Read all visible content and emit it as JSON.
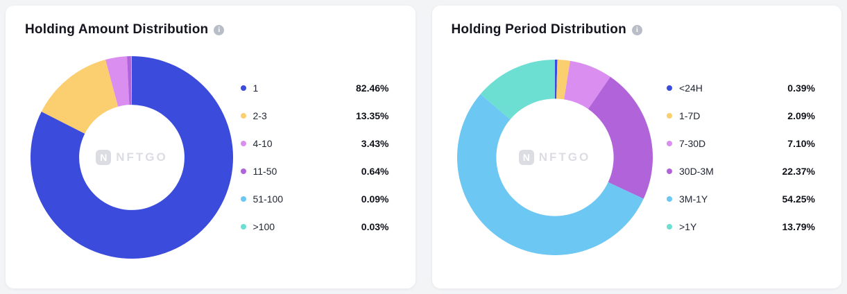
{
  "page": {
    "background_color": "#f3f4f6",
    "watermark_text": "NFTGO",
    "watermark_icon": "N"
  },
  "chart_data": [
    {
      "type": "pie",
      "donut": true,
      "title": "Holding Amount Distribution",
      "legend_position": "right",
      "labels": [
        "1",
        "2-3",
        "4-10",
        "11-50",
        "51-100",
        ">100"
      ],
      "values": [
        82.46,
        13.35,
        3.43,
        0.64,
        0.09,
        0.03
      ],
      "percent_labels": [
        "82.46%",
        "13.35%",
        "3.43%",
        "0.64%",
        "0.09%",
        "0.03%"
      ],
      "colors": [
        "#3b4bdb",
        "#fbce70",
        "#d98ef0",
        "#b163da",
        "#6cc7f2",
        "#6cdfd2"
      ]
    },
    {
      "type": "pie",
      "donut": true,
      "title": "Holding Period Distribution",
      "legend_position": "right",
      "labels": [
        "<24H",
        "1-7D",
        "7-30D",
        "30D-3M",
        "3M-1Y",
        ">1Y"
      ],
      "values": [
        0.39,
        2.09,
        7.1,
        22.37,
        54.25,
        13.79
      ],
      "percent_labels": [
        "0.39%",
        "2.09%",
        "7.10%",
        "22.37%",
        "54.25%",
        "13.79%"
      ],
      "colors": [
        "#3b4bdb",
        "#fbce70",
        "#d98ef0",
        "#b163da",
        "#6cc7f2",
        "#6cdfd2"
      ]
    }
  ]
}
